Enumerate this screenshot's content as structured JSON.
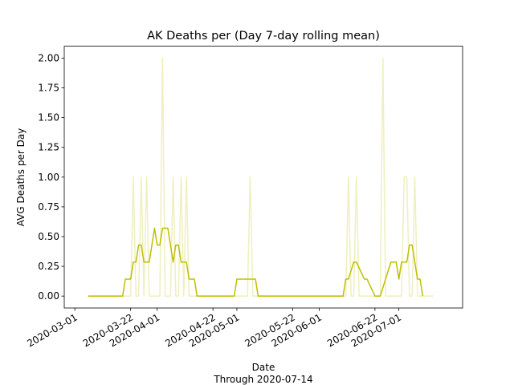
{
  "chart_data": {
    "type": "line",
    "title": "AK Deaths per (Day 7-day rolling mean)",
    "xlabel": "Date",
    "xlabel_sub": "Through 2020-07-14",
    "ylabel": "AVG Deaths per Day",
    "ylim": [
      -0.1,
      2.1
    ],
    "xlim": [
      "2020-02-26",
      "2020-07-25"
    ],
    "yticks": [
      0.0,
      0.25,
      0.5,
      0.75,
      1.0,
      1.25,
      1.5,
      1.75,
      2.0
    ],
    "ytick_labels": [
      "0.00",
      "0.25",
      "0.50",
      "0.75",
      "1.00",
      "1.25",
      "1.50",
      "1.75",
      "2.00"
    ],
    "xticks": [
      "2020-03-01",
      "2020-03-22",
      "2020-04-01",
      "2020-04-22",
      "2020-05-01",
      "2020-05-22",
      "2020-06-01",
      "2020-06-22",
      "2020-07-01"
    ],
    "xtick_labels": [
      "2020-03-01",
      "2020-03-22",
      "2020-04-01",
      "2020-04-22",
      "2020-05-01",
      "2020-05-22",
      "2020-06-01",
      "2020-06-22",
      "2020-07-01"
    ],
    "grid": false,
    "series": [
      {
        "role": "daily",
        "color": "#bfbf00",
        "opacity": 0.25,
        "x": [
          "2020-03-06",
          "2020-03-18",
          "2020-03-19",
          "2020-03-20",
          "2020-03-21",
          "2020-03-22",
          "2020-03-23",
          "2020-03-24",
          "2020-03-25",
          "2020-03-26",
          "2020-03-27",
          "2020-03-28",
          "2020-03-29",
          "2020-03-30",
          "2020-03-31",
          "2020-04-01",
          "2020-04-02",
          "2020-04-03",
          "2020-04-04",
          "2020-04-05",
          "2020-04-06",
          "2020-04-07",
          "2020-04-08",
          "2020-04-09",
          "2020-04-10",
          "2020-04-11",
          "2020-04-12",
          "2020-04-13",
          "2020-04-14",
          "2020-04-15",
          "2020-05-05",
          "2020-05-06",
          "2020-05-07",
          "2020-06-10",
          "2020-06-11",
          "2020-06-12",
          "2020-06-13",
          "2020-06-14",
          "2020-06-15",
          "2020-06-16",
          "2020-06-24",
          "2020-06-25",
          "2020-06-26",
          "2020-07-01",
          "2020-07-02",
          "2020-07-03",
          "2020-07-04",
          "2020-07-05",
          "2020-07-06",
          "2020-07-07",
          "2020-07-08",
          "2020-07-14"
        ],
        "y": [
          0,
          0,
          0,
          0,
          0,
          0,
          1,
          0,
          0,
          1,
          0,
          1,
          0,
          0,
          0,
          0,
          0,
          2,
          0,
          0,
          0,
          1,
          0,
          0,
          1,
          0,
          1,
          0,
          0,
          0,
          0,
          1,
          0,
          0,
          0,
          1,
          0,
          0,
          1,
          0,
          0,
          2,
          0,
          0,
          0,
          1,
          1,
          0,
          0,
          1,
          0,
          0
        ]
      },
      {
        "role": "rolling-mean",
        "color": "#bfbf00",
        "opacity": 1,
        "x": [
          "2020-03-06",
          "2020-03-18",
          "2020-03-19",
          "2020-03-20",
          "2020-03-21",
          "2020-03-22",
          "2020-03-23",
          "2020-03-24",
          "2020-03-25",
          "2020-03-26",
          "2020-03-27",
          "2020-03-28",
          "2020-03-29",
          "2020-03-30",
          "2020-03-31",
          "2020-04-01",
          "2020-04-02",
          "2020-04-03",
          "2020-04-04",
          "2020-04-05",
          "2020-04-06",
          "2020-04-07",
          "2020-04-08",
          "2020-04-09",
          "2020-04-10",
          "2020-04-11",
          "2020-04-12",
          "2020-04-13",
          "2020-04-14",
          "2020-04-15",
          "2020-04-16",
          "2020-04-17",
          "2020-04-18",
          "2020-04-30",
          "2020-05-01",
          "2020-05-07",
          "2020-05-08",
          "2020-05-09",
          "2020-05-10",
          "2020-06-10",
          "2020-06-11",
          "2020-06-12",
          "2020-06-14",
          "2020-06-15",
          "2020-06-18",
          "2020-06-19",
          "2020-06-22",
          "2020-06-23",
          "2020-06-24",
          "2020-06-28",
          "2020-06-29",
          "2020-06-30",
          "2020-07-01",
          "2020-07-02",
          "2020-07-03",
          "2020-07-04",
          "2020-07-05",
          "2020-07-06",
          "2020-07-07",
          "2020-07-08",
          "2020-07-09",
          "2020-07-10"
        ],
        "y": [
          0,
          0,
          0,
          0.143,
          0.143,
          0.143,
          0.286,
          0.286,
          0.429,
          0.429,
          0.286,
          0.286,
          0.286,
          0.429,
          0.571,
          0.429,
          0.429,
          0.571,
          0.571,
          0.571,
          0.429,
          0.286,
          0.429,
          0.429,
          0.286,
          0.286,
          0.286,
          0.143,
          0.143,
          0.143,
          0,
          0,
          0,
          0,
          0.143,
          0.143,
          0.143,
          0,
          0,
          0,
          0.143,
          0.143,
          0.286,
          0.286,
          0.143,
          0.143,
          0,
          0,
          0,
          0.286,
          0.286,
          0.286,
          0.143,
          0.286,
          0.286,
          0.286,
          0.429,
          0.429,
          0.286,
          0.143,
          0.143,
          0
        ]
      }
    ]
  }
}
